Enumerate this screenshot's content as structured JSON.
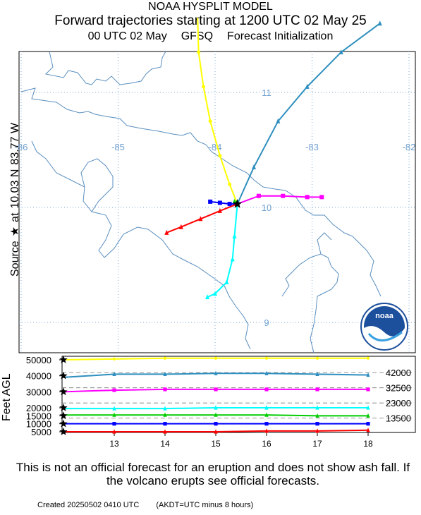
{
  "header": {
    "line1": "NOAA HYSPLIT MODEL",
    "line2": "Forward trajectories starting at 1200 UTC 02 May 25",
    "line3_a": "00 UTC 02 May",
    "line3_b": "GFSQ",
    "line3_c": "Forecast Initialization"
  },
  "source": {
    "label": "Source",
    "at": "at",
    "lat": "10.03 N",
    "lon": "83.77 W",
    "lat_value": 10.03,
    "lon_value": -83.77
  },
  "map": {
    "lon_labels": [
      "-86",
      "-85",
      "-84",
      "-83",
      "-82"
    ],
    "lon_values": [
      -86,
      -85,
      -84,
      -83,
      -82
    ],
    "lat_labels": [
      "11",
      "10",
      "9"
    ],
    "lat_values": [
      11,
      10,
      9
    ],
    "coast_color": "#5a8fbf",
    "grid_color": "#7aa9d8"
  },
  "logo": {
    "text": "noaa"
  },
  "chart_data": {
    "type": "line",
    "ylabel": "Feet AGL",
    "y_ticks": [
      "50000",
      "40000",
      "30000",
      "20000",
      "15000",
      "10000",
      "5000"
    ],
    "y_tick_values": [
      50000,
      40000,
      30000,
      20000,
      15000,
      10000,
      5000
    ],
    "right_labels": [
      "42000",
      "32500",
      "23000",
      "13500"
    ],
    "right_label_values": [
      42000,
      32500,
      23000,
      13500
    ],
    "x_labels": [
      "13",
      "14",
      "15",
      "16",
      "17",
      "18"
    ],
    "x_values": [
      13,
      14,
      15,
      16,
      17,
      18
    ],
    "series": [
      {
        "color": "#ffff00",
        "marker": "circle",
        "start": 50000,
        "points": [
          [
            12,
            50000
          ],
          [
            13,
            50500
          ],
          [
            14,
            51000
          ],
          [
            15,
            51000
          ],
          [
            16,
            51000
          ],
          [
            17,
            51000
          ],
          [
            18,
            51000
          ]
        ]
      },
      {
        "color": "#2e8fbf",
        "marker": "triangle",
        "start": 40000,
        "points": [
          [
            12,
            39000
          ],
          [
            13,
            41000
          ],
          [
            14,
            41000
          ],
          [
            15,
            41500
          ],
          [
            16,
            41500
          ],
          [
            17,
            41000
          ],
          [
            18,
            40500
          ]
        ]
      },
      {
        "color": "#ff00ff",
        "marker": "square",
        "start": 30000,
        "points": [
          [
            12,
            30000
          ],
          [
            13,
            31000
          ],
          [
            14,
            31500
          ],
          [
            15,
            31500
          ],
          [
            16,
            31500
          ],
          [
            17,
            31500
          ],
          [
            18,
            31500
          ]
        ]
      },
      {
        "color": "#00ffff",
        "marker": "triangle",
        "start": 20000,
        "points": [
          [
            12,
            19500
          ],
          [
            13,
            19500
          ],
          [
            14,
            19500
          ],
          [
            15,
            20000
          ],
          [
            16,
            20000
          ],
          [
            17,
            20000
          ],
          [
            18,
            20000
          ]
        ]
      },
      {
        "color": "#00cc00",
        "marker": "triangle",
        "start": 15000,
        "points": [
          [
            12,
            15500
          ],
          [
            13,
            15500
          ],
          [
            14,
            15500
          ],
          [
            15,
            15500
          ],
          [
            16,
            15500
          ],
          [
            17,
            15000
          ],
          [
            18,
            15000
          ]
        ]
      },
      {
        "color": "#0000ff",
        "marker": "square",
        "start": 10000,
        "points": [
          [
            12,
            10000
          ],
          [
            13,
            10000
          ],
          [
            14,
            10000
          ],
          [
            15,
            10000
          ],
          [
            16,
            10000
          ],
          [
            17,
            10000
          ],
          [
            18,
            10000
          ]
        ]
      },
      {
        "color": "#ff0000",
        "marker": "triangle",
        "start": 5000,
        "points": [
          [
            12,
            5000
          ],
          [
            13,
            5000
          ],
          [
            14,
            5000
          ],
          [
            15,
            5000
          ],
          [
            16,
            5500
          ],
          [
            17,
            5500
          ],
          [
            18,
            6000
          ]
        ]
      }
    ]
  },
  "trajectories": [
    {
      "color": "#ffff00",
      "marker": "circle",
      "points": [
        [
          -84.18,
          11.65
        ],
        [
          -84.17,
          11.35
        ],
        [
          -84.12,
          11.05
        ],
        [
          -84.05,
          10.75
        ],
        [
          -83.95,
          10.45
        ],
        [
          -83.85,
          10.2
        ],
        [
          -83.77,
          10.03
        ]
      ]
    },
    {
      "color": "#2e8fbf",
      "marker": "triangle",
      "points": [
        [
          -83.77,
          10.03
        ],
        [
          -83.6,
          10.35
        ],
        [
          -83.35,
          10.75
        ],
        [
          -83.05,
          11.05
        ],
        [
          -82.7,
          11.35
        ],
        [
          -82.3,
          11.6
        ]
      ]
    },
    {
      "color": "#ff00ff",
      "marker": "square",
      "points": [
        [
          -83.77,
          10.03
        ],
        [
          -83.55,
          10.1
        ],
        [
          -83.3,
          10.1
        ],
        [
          -83.05,
          10.09
        ],
        [
          -82.9,
          10.09
        ]
      ]
    },
    {
      "color": "#00ffff",
      "marker": "triangle",
      "points": [
        [
          -83.77,
          10.03
        ],
        [
          -83.8,
          9.75
        ],
        [
          -83.82,
          9.55
        ],
        [
          -83.88,
          9.35
        ],
        [
          -84.0,
          9.25
        ],
        [
          -84.08,
          9.22
        ]
      ]
    },
    {
      "color": "#00cc00",
      "marker": "triangle",
      "points": [
        [
          -83.77,
          10.03
        ],
        [
          -83.78,
          10.04
        ],
        [
          -83.8,
          10.05
        ]
      ]
    },
    {
      "color": "#0000ff",
      "marker": "square",
      "points": [
        [
          -83.77,
          10.03
        ],
        [
          -83.85,
          10.03
        ],
        [
          -83.95,
          10.04
        ],
        [
          -84.05,
          10.05
        ]
      ]
    },
    {
      "color": "#ff0000",
      "marker": "triangle",
      "points": [
        [
          -83.77,
          10.03
        ],
        [
          -83.95,
          9.97
        ],
        [
          -84.15,
          9.9
        ],
        [
          -84.35,
          9.83
        ],
        [
          -84.5,
          9.78
        ]
      ]
    }
  ],
  "disclaimer": "This is not an official forecast for an eruption and does not show ash fall. If the volcano erupts see official forecasts.",
  "footer": {
    "created": "Created 20250502 0410 UTC",
    "note": "(AKDT=UTC minus 8 hours)"
  }
}
